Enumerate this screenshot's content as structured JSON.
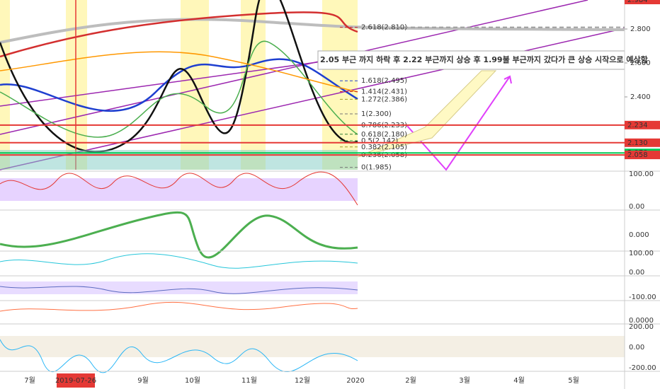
{
  "price_axis": {
    "ticks": [
      {
        "value": 2.8,
        "label": "2.800"
      },
      {
        "value": 2.6,
        "label": "2.600"
      },
      {
        "value": 2.4,
        "label": "2.400"
      }
    ],
    "top_tag": "2.984"
  },
  "price_tags": [
    {
      "value": 2.234,
      "label": "2.234",
      "color": "#e53935"
    },
    {
      "value": 2.13,
      "label": "2.130",
      "color": "#e53935"
    },
    {
      "value": 2.07,
      "label": "2.070",
      "color": "#00c853"
    },
    {
      "value": 2.058,
      "label": "2.058",
      "color": "#e53935"
    }
  ],
  "fib_levels": [
    {
      "label": "2.618(2.810)",
      "price": 2.81,
      "color": "#c62828"
    },
    {
      "label": "1.618(2.495)",
      "price": 2.495,
      "color": "#1e3fd0"
    },
    {
      "label": "1.414(2.431)",
      "price": 2.431,
      "color": "#c62828"
    },
    {
      "label": "1.272(2.386)",
      "price": 2.386,
      "color": "#9e9d24"
    },
    {
      "label": "1(2.300)",
      "price": 2.3,
      "color": "#757575"
    },
    {
      "label": "0.786(2.233)",
      "price": 2.233,
      "color": "#26a69a"
    },
    {
      "label": "0.618(2.180)",
      "price": 2.18,
      "color": "#2e7d32"
    },
    {
      "label": "0.5(2.142)",
      "price": 2.142,
      "color": "#43a047"
    },
    {
      "label": "0.382(2.105)",
      "price": 2.105,
      "color": "#9e9d24"
    },
    {
      "label": "0.236(2.058)",
      "price": 2.058,
      "color": "#c62828"
    },
    {
      "label": "0(1.985)",
      "price": 1.985,
      "color": "#757575"
    }
  ],
  "annotation": "2.05 부근 까지 하락 후 2.22 부근까지 상승 후 1.99불 부근까지 갔다가 큰 상승 시작으로 예상함",
  "time_axis": {
    "labels": [
      "7월",
      "2019-07-26",
      "9월",
      "10월",
      "11월",
      "12월",
      "2020",
      "2월",
      "3월",
      "4월",
      "5월"
    ]
  },
  "panels": [
    {
      "labels": [
        "100.00",
        "0.00"
      ]
    },
    {
      "labels": [
        "0.000"
      ]
    },
    {
      "labels": [
        "100.00",
        "0.00"
      ]
    },
    {
      "labels": [
        "-100.00"
      ]
    },
    {
      "labels": [
        "0.0000"
      ]
    },
    {
      "labels": [
        "200.00",
        "0.00",
        "-200.00"
      ]
    }
  ]
}
